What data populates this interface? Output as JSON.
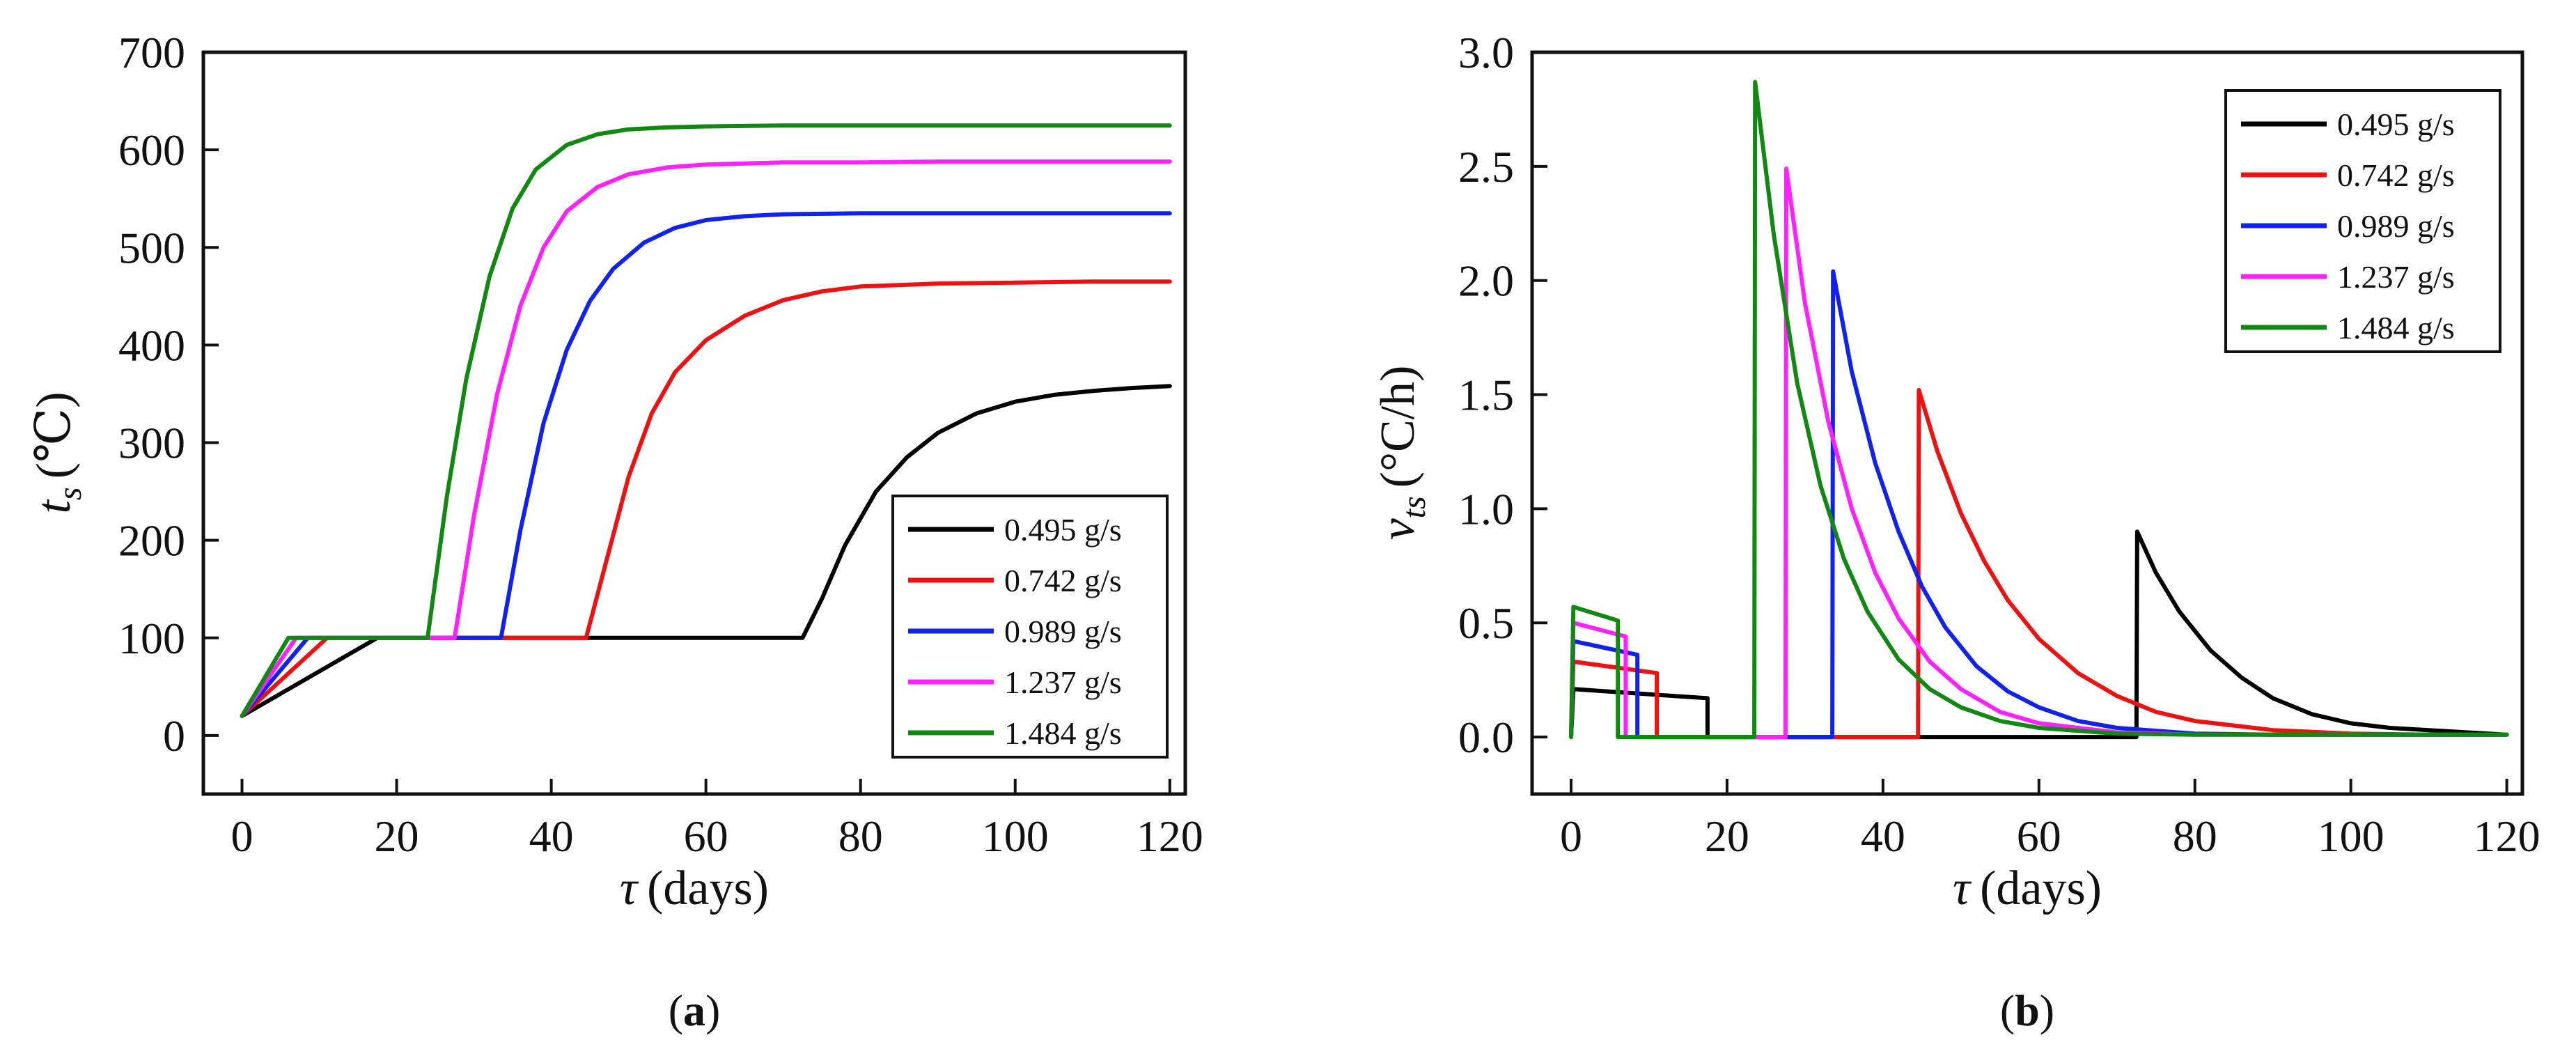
{
  "figure": {
    "captions": [
      {
        "open": "(",
        "letter": "a",
        "close": ")"
      },
      {
        "open": "(",
        "letter": "b",
        "close": ")"
      }
    ]
  },
  "chart_data": [
    {
      "type": "line",
      "panel": "a",
      "xlabel": {
        "symbol": "τ",
        "text": "(days)"
      },
      "ylabel": {
        "symbol": "t",
        "subscript": "s",
        "unit": "(℃)"
      },
      "xlim": [
        -5,
        122
      ],
      "ylim": [
        -60,
        700
      ],
      "xticks": [
        0,
        20,
        40,
        60,
        80,
        100,
        120
      ],
      "xtick_labels": [
        "0",
        "20",
        "40",
        "60",
        "80",
        "100",
        "120"
      ],
      "yticks": [
        0,
        100,
        200,
        300,
        400,
        500,
        600,
        700
      ],
      "ytick_labels": [
        "0",
        "100",
        "200",
        "300",
        "400",
        "500",
        "600",
        "700"
      ],
      "legend_position": "lower-right",
      "series": [
        {
          "name": "0.495 g/s",
          "color": "#000000",
          "x": [
            0,
            17.5,
            72.5,
            75,
            78,
            82,
            86,
            90,
            95,
            100,
            105,
            110,
            115,
            120
          ],
          "y": [
            20,
            100,
            100,
            140,
            195,
            250,
            285,
            310,
            330,
            342,
            349,
            353,
            356,
            358
          ]
        },
        {
          "name": "0.742 g/s",
          "color": "#ee1111",
          "x": [
            0,
            11,
            44.5,
            47,
            50,
            53,
            56,
            60,
            65,
            70,
            75,
            80,
            90,
            100,
            110,
            120
          ],
          "y": [
            20,
            100,
            100,
            175,
            265,
            330,
            372,
            405,
            430,
            446,
            455,
            460,
            463,
            464,
            465,
            465
          ],
          "pre_x": [],
          "pre_y": []
        },
        {
          "name": "0.989 g/s",
          "color": "#1122ee",
          "x": [
            0,
            8.5,
            33.5,
            36,
            39,
            42,
            45,
            48,
            52,
            56,
            60,
            65,
            70,
            80,
            90,
            100,
            120
          ],
          "y": [
            20,
            100,
            100,
            210,
            320,
            395,
            445,
            478,
            505,
            520,
            528,
            532,
            534,
            535,
            535,
            535,
            535
          ]
        },
        {
          "name": "1.237 g/s",
          "color": "#ff22ff",
          "x": [
            0,
            7,
            27.5,
            30,
            33,
            36,
            39,
            42,
            46,
            50,
            55,
            60,
            70,
            80,
            90,
            100,
            120
          ],
          "y": [
            20,
            100,
            100,
            225,
            350,
            440,
            500,
            537,
            562,
            575,
            582,
            585,
            587,
            587,
            588,
            588,
            588
          ]
        },
        {
          "name": "1.484 g/s",
          "color": "#118811",
          "x": [
            0,
            6,
            24,
            26.5,
            29,
            32,
            35,
            38,
            42,
            46,
            50,
            55,
            60,
            70,
            80,
            90,
            100,
            120
          ],
          "y": [
            20,
            100,
            100,
            245,
            365,
            470,
            540,
            580,
            605,
            616,
            621,
            623,
            624,
            625,
            625,
            625,
            625,
            625
          ]
        }
      ]
    },
    {
      "type": "line",
      "panel": "b",
      "xlabel": {
        "symbol": "τ",
        "text": "(days)"
      },
      "ylabel": {
        "symbol": "v",
        "subscript": "ts",
        "unit": "(°C/h)"
      },
      "xlim": [
        -5,
        122
      ],
      "ylim": [
        -0.25,
        3.0
      ],
      "xticks": [
        0,
        20,
        40,
        60,
        80,
        100,
        120
      ],
      "xtick_labels": [
        "0",
        "20",
        "40",
        "60",
        "80",
        "100",
        "120"
      ],
      "yticks": [
        0.0,
        0.5,
        1.0,
        1.5,
        2.0,
        2.5,
        3.0
      ],
      "ytick_labels": [
        "0.0",
        "0.5",
        "1.0",
        "1.5",
        "2.0",
        "2.5",
        "3.0"
      ],
      "legend_position": "top-right",
      "series": [
        {
          "name": "0.495 g/s",
          "color": "#000000",
          "x": [
            0,
            0.3,
            17.5,
            17.5,
            72.5,
            72.6,
            75,
            78,
            82,
            86,
            90,
            95,
            100,
            105,
            110,
            115,
            120
          ],
          "y": [
            0,
            0.21,
            0.17,
            0,
            0,
            0.9,
            0.72,
            0.55,
            0.38,
            0.26,
            0.17,
            0.1,
            0.06,
            0.04,
            0.03,
            0.02,
            0.01
          ]
        },
        {
          "name": "0.742 g/s",
          "color": "#ee1111",
          "x": [
            0,
            0.3,
            11,
            11,
            44.5,
            44.6,
            47,
            50,
            53,
            56,
            60,
            65,
            70,
            75,
            80,
            90,
            100,
            110,
            120
          ],
          "y": [
            0,
            0.33,
            0.28,
            0,
            0,
            1.52,
            1.25,
            0.98,
            0.77,
            0.6,
            0.43,
            0.28,
            0.18,
            0.11,
            0.07,
            0.03,
            0.015,
            0.01,
            0.01
          ]
        },
        {
          "name": "0.989 g/s",
          "color": "#1122ee",
          "x": [
            0,
            0.3,
            8.5,
            8.5,
            33.5,
            33.6,
            36,
            39,
            42,
            45,
            48,
            52,
            56,
            60,
            65,
            70,
            80,
            90,
            100,
            120
          ],
          "y": [
            0,
            0.42,
            0.36,
            0,
            0,
            2.04,
            1.6,
            1.2,
            0.9,
            0.66,
            0.48,
            0.31,
            0.2,
            0.13,
            0.07,
            0.04,
            0.015,
            0.01,
            0.01,
            0.01
          ]
        },
        {
          "name": "1.237 g/s",
          "color": "#ff22ff",
          "x": [
            0,
            0.3,
            7,
            7,
            27.5,
            27.6,
            30,
            33,
            36,
            39,
            42,
            46,
            50,
            55,
            60,
            70,
            80,
            100,
            120
          ],
          "y": [
            0,
            0.5,
            0.44,
            0,
            0,
            2.49,
            1.9,
            1.38,
            1.0,
            0.72,
            0.52,
            0.33,
            0.21,
            0.11,
            0.06,
            0.02,
            0.01,
            0.01,
            0.01
          ]
        },
        {
          "name": "1.484 g/s",
          "color": "#118811",
          "x": [
            0,
            0.3,
            6,
            6,
            23.5,
            23.6,
            26,
            29,
            32,
            35,
            38,
            42,
            46,
            50,
            55,
            60,
            70,
            80,
            100,
            120
          ],
          "y": [
            0,
            0.57,
            0.51,
            0,
            0,
            2.87,
            2.2,
            1.55,
            1.1,
            0.78,
            0.55,
            0.34,
            0.21,
            0.13,
            0.07,
            0.04,
            0.015,
            0.01,
            0.01,
            0.01
          ]
        }
      ]
    }
  ]
}
